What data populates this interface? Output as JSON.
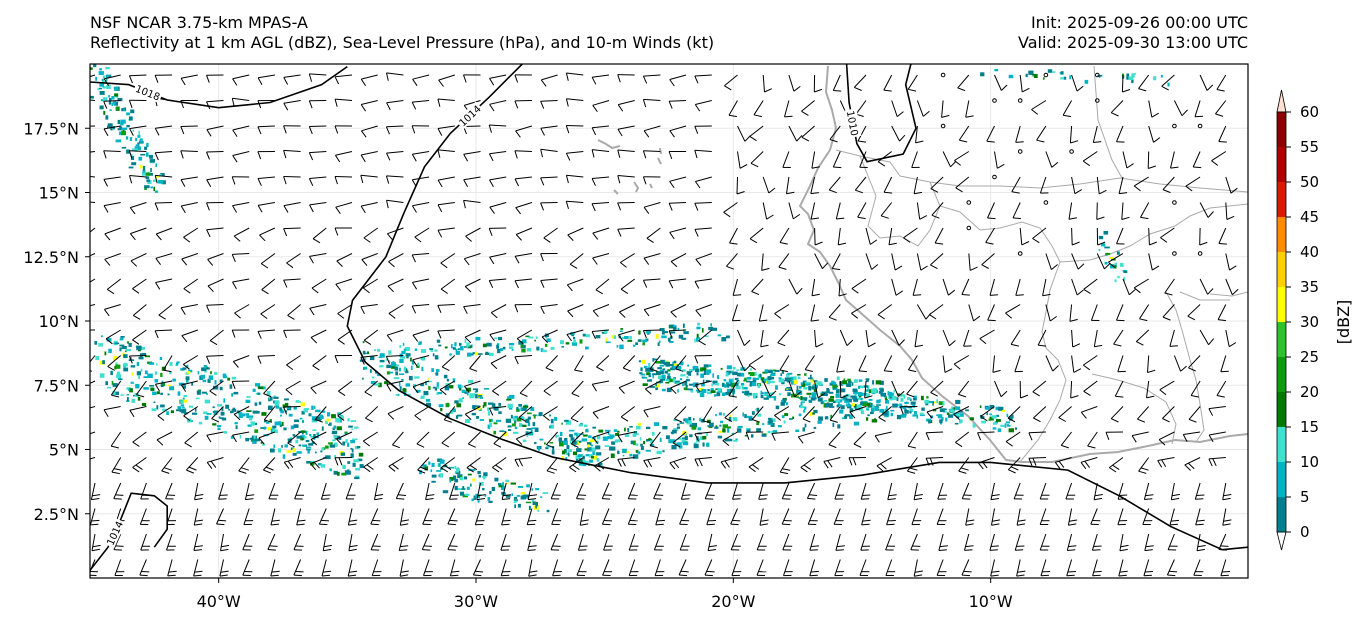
{
  "title": {
    "line1": "NSF NCAR 3.75-km MPAS-A",
    "line2": "Reflectivity at 1 km AGL (dBZ), Sea-Level Pressure (hPa), and 10-m Winds (kt)",
    "init": "Init: 2025-09-26 00:00 UTC",
    "valid": "Valid: 2025-09-30 13:00 UTC"
  },
  "map": {
    "extent": {
      "lon": [
        -45,
        0
      ],
      "lat": [
        0,
        20
      ]
    },
    "lon_ticks": [
      {
        "value": -40,
        "label": "40°W"
      },
      {
        "value": -30,
        "label": "30°W"
      },
      {
        "value": -20,
        "label": "20°W"
      },
      {
        "value": -10,
        "label": "10°W"
      }
    ],
    "lat_ticks": [
      {
        "value": 2.5,
        "label": "2.5°N"
      },
      {
        "value": 5,
        "label": "5°N"
      },
      {
        "value": 7.5,
        "label": "7.5°N"
      },
      {
        "value": 10,
        "label": "10°N"
      },
      {
        "value": 12.5,
        "label": "12.5°N"
      },
      {
        "value": 15,
        "label": "15°N"
      },
      {
        "value": 17.5,
        "label": "17.5°N"
      }
    ],
    "isobars": [
      {
        "value": 1018,
        "label": "1018",
        "points": [
          [
            -45,
            19.3
          ],
          [
            -43.5,
            19.2
          ],
          [
            -42,
            18.6
          ],
          [
            -40,
            18.3
          ],
          [
            -38,
            18.5
          ],
          [
            -36,
            19.2
          ],
          [
            -35,
            19.9
          ]
        ]
      },
      {
        "value": 1014,
        "label": "1014",
        "points": [
          [
            -28.2,
            20
          ],
          [
            -29.5,
            18.7
          ],
          [
            -31,
            17.3
          ],
          [
            -32,
            16
          ],
          [
            -32.8,
            14.2
          ],
          [
            -33.5,
            12.5
          ],
          [
            -34.8,
            10.8
          ],
          [
            -35,
            9.8
          ],
          [
            -34.3,
            8.4
          ],
          [
            -33,
            7.3
          ],
          [
            -31,
            6.2
          ],
          [
            -29,
            5.4
          ],
          [
            -27,
            4.7
          ],
          [
            -24,
            4.1
          ],
          [
            -21,
            3.7
          ],
          [
            -18,
            3.7
          ],
          [
            -15,
            4.0
          ],
          [
            -12,
            4.5
          ],
          [
            -10,
            4.5
          ],
          [
            -7,
            4.2
          ],
          [
            -5,
            3.2
          ],
          [
            -3,
            2.0
          ],
          [
            -1,
            1.1
          ],
          [
            0,
            1.2
          ]
        ]
      },
      {
        "value": 1014,
        "label": "1014",
        "points": [
          [
            -45,
            0.3
          ],
          [
            -44.3,
            1.2
          ],
          [
            -43.8,
            2.3
          ],
          [
            -43.4,
            3.3
          ],
          [
            -42.5,
            3.2
          ],
          [
            -42,
            2.8
          ],
          [
            -42,
            1.9
          ],
          [
            -42.5,
            1.2
          ]
        ]
      },
      {
        "value": 1010,
        "label": "1010",
        "points": [
          [
            -15.6,
            20
          ],
          [
            -15.5,
            18.5
          ],
          [
            -15.2,
            16.9
          ],
          [
            -14.8,
            16.2
          ],
          [
            -13.4,
            16.5
          ],
          [
            -12.9,
            17.5
          ],
          [
            -13.3,
            19.2
          ],
          [
            -13.1,
            20
          ]
        ]
      }
    ],
    "colorbar": {
      "label": "[dBZ]",
      "levels": [
        0,
        5,
        10,
        15,
        20,
        25,
        30,
        35,
        40,
        45,
        50,
        55,
        60
      ],
      "colors": [
        "#00808f",
        "#00b4c6",
        "#40e0d0",
        "#007a00",
        "#0f9b0f",
        "#2ec22e",
        "#ffff00",
        "#ffd000",
        "#ff8c00",
        "#d81a00",
        "#b00000",
        "#8b0000",
        "#ff00ff",
        "#fde0d2"
      ]
    }
  }
}
